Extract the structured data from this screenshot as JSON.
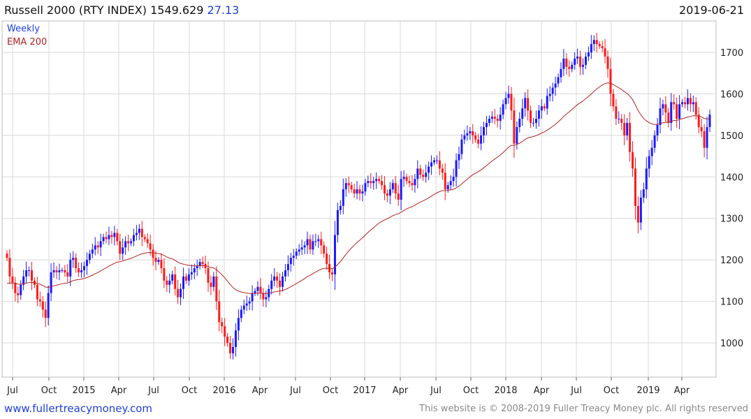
{
  "header": {
    "name": "Russell 2000 (RTY INDEX)",
    "last": "1549.629",
    "change": "27.13",
    "date": "2019-06-21"
  },
  "footer": {
    "site": "www.fullertreacymoney.com",
    "copyright": "This website is © 2008-2019 Fuller Treacy Money plc. All rights reserved"
  },
  "colors": {
    "up": "#1a1aff",
    "down": "#ff1a1a",
    "ema": "#b22222",
    "grid": "#d8d8d8"
  },
  "chart_data": {
    "type": "candlestick",
    "title": "Russell 2000 (RTY INDEX)",
    "legend": [
      "Weekly",
      "EMA 200"
    ],
    "legend_placement": "top-left",
    "ylim": [
      930,
      1760
    ],
    "yticks": [
      1000,
      1100,
      1200,
      1300,
      1400,
      1500,
      1600,
      1700
    ],
    "xticks": [
      "Jul",
      "Oct",
      "2015",
      "Apr",
      "Jul",
      "Oct",
      "2016",
      "Apr",
      "Jul",
      "Oct",
      "2017",
      "Apr",
      "Jul",
      "Oct",
      "2018",
      "Apr",
      "Jul",
      "Oct",
      "2019",
      "Apr"
    ],
    "start_week": "2014-06-27",
    "end_week": "2019-06-21",
    "ema_period_weeks": 40,
    "ema_seed": 1140,
    "weekly_close": [
      1205,
      1160,
      1145,
      1120,
      1115,
      1140,
      1160,
      1175,
      1175,
      1150,
      1140,
      1105,
      1100,
      1080,
      1060,
      1120,
      1170,
      1175,
      1170,
      1175,
      1175,
      1170,
      1160,
      1200,
      1205,
      1180,
      1170,
      1175,
      1185,
      1200,
      1215,
      1225,
      1235,
      1230,
      1245,
      1255,
      1250,
      1260,
      1255,
      1265,
      1245,
      1215,
      1230,
      1245,
      1240,
      1245,
      1260,
      1265,
      1275,
      1255,
      1250,
      1240,
      1225,
      1205,
      1195,
      1200,
      1180,
      1150,
      1140,
      1150,
      1165,
      1130,
      1110,
      1130,
      1160,
      1150,
      1165,
      1170,
      1180,
      1185,
      1195,
      1190,
      1180,
      1145,
      1135,
      1160,
      1100,
      1050,
      1040,
      1015,
      1000,
      975,
      990,
      1030,
      1060,
      1080,
      1090,
      1095,
      1100,
      1120,
      1125,
      1135,
      1120,
      1105,
      1110,
      1130,
      1150,
      1160,
      1150,
      1135,
      1160,
      1175,
      1190,
      1205,
      1210,
      1220,
      1225,
      1230,
      1235,
      1250,
      1225,
      1245,
      1245,
      1250,
      1235,
      1215,
      1190,
      1170,
      1165,
      1260,
      1320,
      1330,
      1370,
      1385,
      1380,
      1370,
      1360,
      1370,
      1360,
      1365,
      1385,
      1390,
      1385,
      1390,
      1395,
      1390,
      1380,
      1360,
      1355,
      1370,
      1385,
      1360,
      1345,
      1395,
      1400,
      1390,
      1385,
      1380,
      1395,
      1420,
      1405,
      1400,
      1410,
      1425,
      1435,
      1440,
      1440,
      1420,
      1410,
      1370,
      1380,
      1390,
      1400,
      1440,
      1455,
      1490,
      1500,
      1505,
      1510,
      1500,
      1490,
      1480,
      1500,
      1520,
      1530,
      1540,
      1545,
      1540,
      1535,
      1550,
      1575,
      1590,
      1600,
      1560,
      1480,
      1520,
      1540,
      1565,
      1590,
      1560,
      1530,
      1530,
      1540,
      1560,
      1570,
      1565,
      1595,
      1600,
      1615,
      1625,
      1640,
      1660,
      1685,
      1665,
      1660,
      1670,
      1685,
      1690,
      1665,
      1670,
      1690,
      1700,
      1720,
      1730,
      1720,
      1715,
      1710,
      1690,
      1660,
      1600,
      1570,
      1540,
      1540,
      1530,
      1500,
      1530,
      1460,
      1420,
      1330,
      1290,
      1350,
      1370,
      1420,
      1450,
      1470,
      1500,
      1525,
      1565,
      1575,
      1555,
      1530,
      1580,
      1575,
      1540,
      1575,
      1580,
      1575,
      1590,
      1575,
      1580,
      1550,
      1520,
      1510,
      1470,
      1520,
      1550
    ]
  }
}
